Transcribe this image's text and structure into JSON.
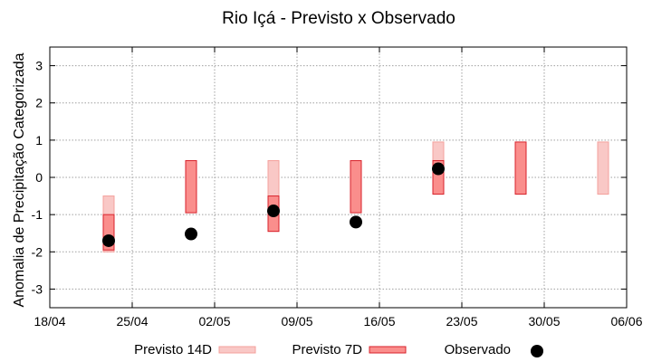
{
  "chart_data": {
    "type": "range-bar",
    "title": "Rio Içá - Previsto x Observado",
    "xlabel": "",
    "ylabel": "Anomalia de Precipitação Categorizada",
    "ylim": [
      -3.5,
      3.5
    ],
    "yticks": [
      -3,
      -2,
      -1,
      0,
      1,
      2,
      3
    ],
    "xlim": [
      "2023-04-18",
      "2023-06-06"
    ],
    "xticks": [
      "18/04",
      "25/04",
      "02/05",
      "09/05",
      "16/05",
      "23/05",
      "30/05",
      "06/06"
    ],
    "grid": true,
    "legend_position": "bottom",
    "colors": {
      "previsto14": {
        "fill": "#f9c8c6",
        "stroke": "#f4a09c"
      },
      "previsto7": {
        "fill": "#fa8e8c",
        "stroke": "#d8222b"
      },
      "observado": "#000000",
      "grid": "#a0a0a0"
    },
    "series": [
      {
        "name": "Previsto 14D",
        "kind": "range",
        "points": [
          {
            "date": "2023-04-23",
            "low": -2.0,
            "high": -0.5
          },
          {
            "date": "2023-05-07",
            "low": -1.45,
            "high": 0.45
          },
          {
            "date": "2023-05-21",
            "low": -0.45,
            "high": 0.95
          },
          {
            "date": "2023-06-04",
            "low": -0.45,
            "high": 0.95
          }
        ]
      },
      {
        "name": "Previsto 7D",
        "kind": "range",
        "points": [
          {
            "date": "2023-04-23",
            "low": -1.95,
            "high": -1.0
          },
          {
            "date": "2023-04-30",
            "low": -0.95,
            "high": 0.45
          },
          {
            "date": "2023-05-07",
            "low": -1.45,
            "high": -0.5
          },
          {
            "date": "2023-05-14",
            "low": -0.95,
            "high": 0.45
          },
          {
            "date": "2023-05-21",
            "low": -0.45,
            "high": 0.45
          },
          {
            "date": "2023-05-28",
            "low": -0.45,
            "high": 0.95
          }
        ]
      },
      {
        "name": "Observado",
        "kind": "point",
        "points": [
          {
            "date": "2023-04-23",
            "value": -1.7
          },
          {
            "date": "2023-04-30",
            "value": -1.52
          },
          {
            "date": "2023-05-07",
            "value": -0.9
          },
          {
            "date": "2023-05-14",
            "value": -1.2
          },
          {
            "date": "2023-05-21",
            "value": 0.23
          }
        ]
      }
    ]
  }
}
